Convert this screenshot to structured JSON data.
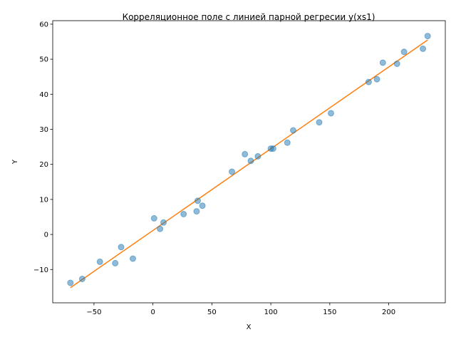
{
  "chart_data": {
    "type": "scatter",
    "title": "Корреляционное поле с линией парной регресии y(xs1)",
    "xlabel": "X",
    "ylabel": "Y",
    "xlim": [
      -85,
      248
    ],
    "ylim": [
      -19.5,
      61
    ],
    "x_ticks": [
      -50,
      0,
      50,
      100,
      150,
      200
    ],
    "y_ticks": [
      -10,
      0,
      10,
      20,
      30,
      40,
      50,
      60
    ],
    "x_tick_labels": [
      "−50",
      "0",
      "50",
      "100",
      "150",
      "200"
    ],
    "y_tick_labels": [
      "−10",
      "0",
      "10",
      "20",
      "30",
      "40",
      "50",
      "60"
    ],
    "grid": false,
    "series": [
      {
        "kind": "scatter",
        "color": "#1f77b4",
        "x": [
          -70,
          -60,
          -45,
          -32,
          -27,
          -17,
          1,
          6,
          9,
          26,
          37,
          38,
          42,
          67,
          78,
          83,
          89,
          100,
          102,
          114,
          119,
          141,
          151,
          183,
          190,
          195,
          207,
          213,
          229,
          233
        ],
        "y": [
          -13.8,
          -12.7,
          -7.8,
          -8.2,
          -3.6,
          -6.9,
          4.6,
          1.6,
          3.4,
          5.8,
          6.6,
          9.6,
          8.2,
          17.9,
          22.9,
          21,
          22.3,
          24.5,
          24.5,
          26.2,
          29.7,
          32,
          34.6,
          43.5,
          44.3,
          49,
          48.7,
          52.1,
          53,
          56.6
        ]
      },
      {
        "kind": "line",
        "color": "#ff7f0e",
        "x": [
          -70,
          233
        ],
        "y": [
          -15.2,
          55.5
        ]
      }
    ]
  }
}
